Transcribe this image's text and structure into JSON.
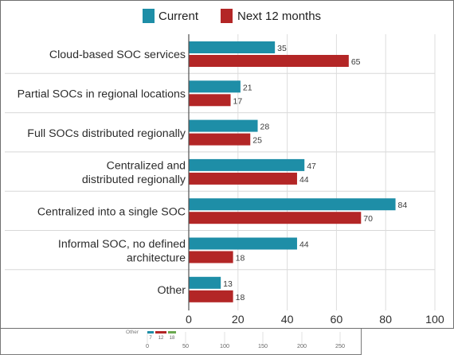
{
  "chart_data": {
    "type": "bar",
    "orientation": "horizontal",
    "categories": [
      "Cloud-based SOC services",
      "Partial SOCs in regional locations",
      "Full SOCs distributed regionally",
      "Centralized and distributed regionally",
      "Centralized into a single SOC",
      "Informal SOC, no defined architecture",
      "Other"
    ],
    "category_lines": [
      [
        "Cloud-based SOC services"
      ],
      [
        "Partial SOCs in regional locations"
      ],
      [
        "Full SOCs distributed regionally"
      ],
      [
        "Centralized and",
        "distributed regionally"
      ],
      [
        "Centralized into a single SOC"
      ],
      [
        "Informal SOC, no defined",
        "architecture"
      ],
      [
        "Other"
      ]
    ],
    "series": [
      {
        "name": "Current",
        "color": "#1e8ea7",
        "values": [
          35,
          21,
          28,
          47,
          84,
          44,
          13
        ],
        "labels": [
          "35",
          "21",
          "28",
          "47",
          "84",
          "44",
          "13"
        ]
      },
      {
        "name": "Next 12 months",
        "color": "#b32626",
        "values": [
          65,
          17,
          25,
          44,
          70,
          18,
          18
        ],
        "labels": [
          "65",
          "17",
          "25",
          "44",
          "70",
          "18",
          "18"
        ]
      }
    ],
    "xlim": [
      0,
      100
    ],
    "xticks": [
      0,
      20,
      40,
      60,
      80,
      100
    ],
    "xtick_labels": [
      "0",
      "20",
      "40",
      "60",
      "80",
      "100"
    ],
    "legend_position": "top-center",
    "grid": "vertical gridlines"
  },
  "underlay_chart": {
    "category": "Other",
    "bar_labels": [
      "7",
      "12",
      "18"
    ],
    "xtick_labels": [
      "0",
      "50",
      "100",
      "150",
      "200",
      "250"
    ],
    "colors": [
      "#1e8ea7",
      "#b32626",
      "#6aa84f"
    ]
  }
}
